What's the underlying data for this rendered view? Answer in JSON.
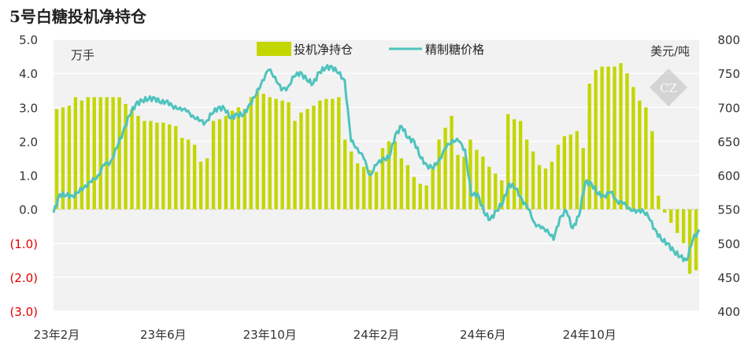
{
  "chart_data": {
    "type": "bar+line",
    "title": "5号白糖投机净持仓",
    "left_unit": "万手",
    "right_unit": "美元/吨",
    "legend_position": "top-center",
    "grid": "horizontal",
    "left_axis": {
      "min": -3.0,
      "max": 5.0,
      "ticks": [
        {
          "value": 5.0,
          "label": "5.0"
        },
        {
          "value": 4.0,
          "label": "4.0"
        },
        {
          "value": 3.0,
          "label": "3.0"
        },
        {
          "value": 2.0,
          "label": "2.0"
        },
        {
          "value": 1.0,
          "label": "1.0"
        },
        {
          "value": 0.0,
          "label": "0.0"
        },
        {
          "value": -1.0,
          "label": "(1.0)"
        },
        {
          "value": -2.0,
          "label": "(2.0)"
        },
        {
          "value": -3.0,
          "label": "(3.0)"
        }
      ]
    },
    "right_axis": {
      "min": 400,
      "max": 800,
      "ticks": [
        {
          "value": 800,
          "label": "800"
        },
        {
          "value": 750,
          "label": "750"
        },
        {
          "value": 700,
          "label": "700"
        },
        {
          "value": 650,
          "label": "650"
        },
        {
          "value": 600,
          "label": "600"
        },
        {
          "value": 550,
          "label": "550"
        },
        {
          "value": 500,
          "label": "500"
        },
        {
          "value": 450,
          "label": "450"
        },
        {
          "value": 400,
          "label": "400"
        }
      ]
    },
    "x_ticks": [
      {
        "index": 0,
        "label": "23年2月"
      },
      {
        "index": 17,
        "label": "23年6月"
      },
      {
        "index": 34,
        "label": "23年10月"
      },
      {
        "index": 51,
        "label": "24年2月"
      },
      {
        "index": 68,
        "label": "24年6月"
      },
      {
        "index": 85,
        "label": "24年10月"
      }
    ],
    "series": [
      {
        "name": "投机净持仓",
        "type": "bar",
        "axis": "left",
        "color": "#c4d600",
        "values": [
          2.95,
          3.0,
          3.05,
          3.3,
          3.2,
          3.3,
          3.3,
          3.3,
          3.3,
          3.3,
          3.3,
          3.1,
          2.95,
          2.75,
          2.6,
          2.6,
          2.55,
          2.55,
          2.5,
          2.45,
          2.1,
          2.05,
          1.9,
          1.4,
          1.5,
          2.6,
          2.65,
          2.75,
          2.9,
          3.0,
          2.95,
          3.3,
          3.5,
          3.4,
          3.3,
          3.25,
          3.2,
          3.15,
          2.6,
          2.85,
          2.95,
          3.05,
          3.2,
          3.25,
          3.25,
          3.3,
          2.05,
          1.7,
          1.35,
          1.25,
          1.15,
          1.1,
          1.8,
          2.0,
          2.0,
          1.5,
          1.3,
          0.95,
          0.75,
          0.7,
          1.25,
          2.05,
          2.4,
          2.75,
          1.6,
          1.55,
          2.05,
          1.75,
          1.55,
          1.25,
          1.05,
          0.85,
          2.8,
          2.65,
          2.6,
          2.05,
          1.7,
          1.3,
          1.2,
          1.4,
          1.9,
          2.15,
          2.2,
          2.3,
          1.8,
          3.7,
          4.1,
          4.2,
          4.2,
          4.2,
          4.3,
          4.0,
          3.6,
          3.2,
          3.0,
          2.3,
          0.4,
          -0.1,
          -0.4,
          -0.7,
          -1.0,
          -1.9,
          -1.8
        ]
      },
      {
        "name": "精制糖价格",
        "type": "line",
        "axis": "right",
        "color": "#4ec3bd",
        "values": [
          545,
          572,
          570,
          570,
          575,
          585,
          590,
          600,
          615,
          620,
          640,
          665,
          688,
          705,
          710,
          712,
          714,
          706,
          710,
          698,
          700,
          694,
          688,
          680,
          678,
          690,
          700,
          698,
          684,
          690,
          688,
          705,
          718,
          740,
          755,
          745,
          725,
          730,
          745,
          752,
          740,
          735,
          752,
          758,
          760,
          750,
          740,
          650,
          640,
          625,
          600,
          615,
          625,
          625,
          660,
          672,
          655,
          650,
          625,
          615,
          610,
          625,
          640,
          652,
          650,
          638,
          570,
          573,
          545,
          535,
          548,
          560,
          588,
          580,
          565,
          550,
          530,
          522,
          520,
          505,
          538,
          548,
          522,
          540,
          590,
          588,
          572,
          570,
          575,
          563,
          558,
          552,
          545,
          550,
          538,
          521,
          505,
          500,
          488,
          480,
          475,
          505,
          520
        ]
      }
    ]
  }
}
